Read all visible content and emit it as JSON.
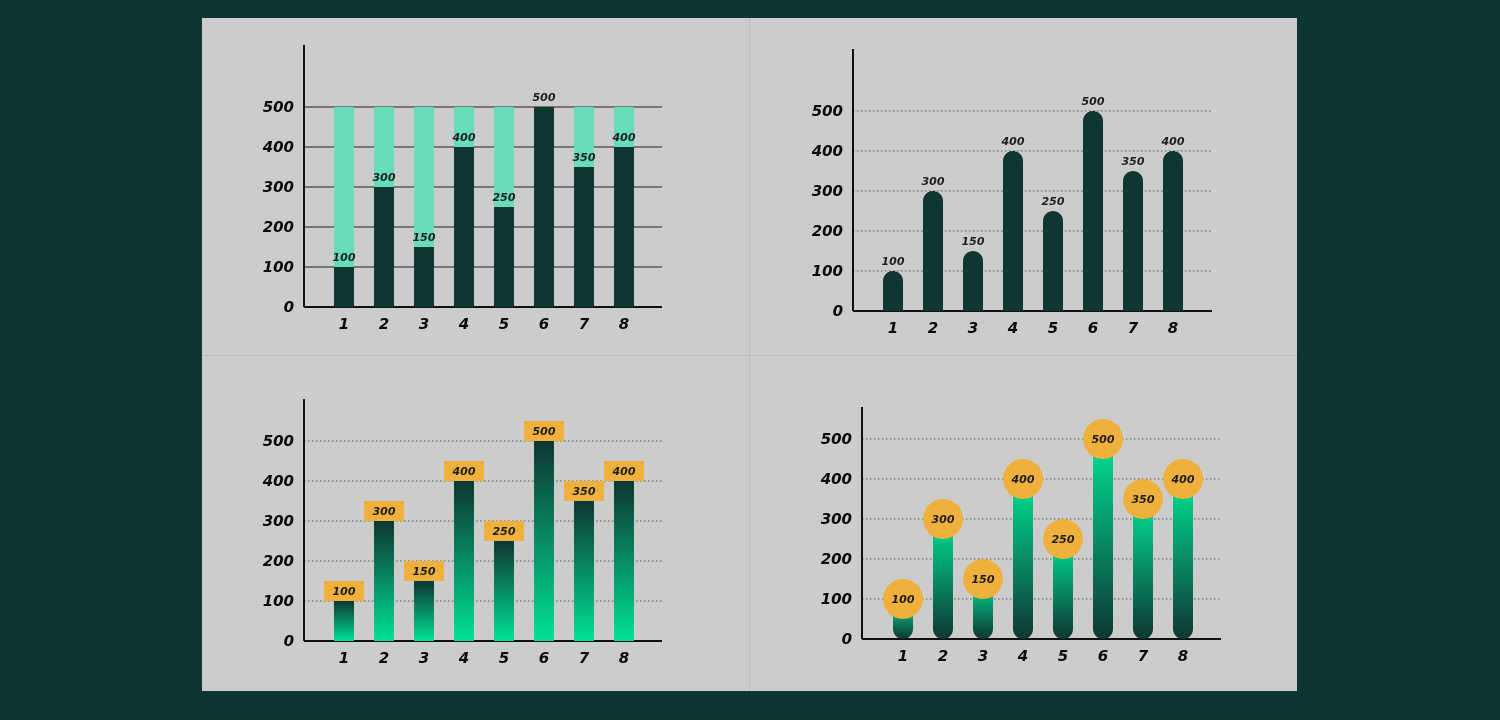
{
  "colors": {
    "page_bg": "#0d3533",
    "board_bg": "#cccccc",
    "dark_bar": "#0e3633",
    "light_bar": "#66dcba",
    "gradient_bright": "#00e194",
    "badge": "#f0b13c"
  },
  "chart_data": [
    {
      "type": "bar",
      "style": "stacked-progress",
      "categories": [
        "1",
        "2",
        "3",
        "4",
        "5",
        "6",
        "7",
        "8"
      ],
      "values": [
        100,
        300,
        150,
        400,
        250,
        500,
        350,
        400
      ],
      "max_value": 500,
      "ylim": [
        0,
        500
      ],
      "yticks": [
        "0",
        "100",
        "200",
        "300",
        "400",
        "500"
      ],
      "grid": "solid",
      "title": "",
      "xlabel": "",
      "ylabel": ""
    },
    {
      "type": "bar",
      "style": "rounded",
      "categories": [
        "1",
        "2",
        "3",
        "4",
        "5",
        "6",
        "7",
        "8"
      ],
      "values": [
        100,
        300,
        150,
        400,
        250,
        500,
        350,
        400
      ],
      "ylim": [
        0,
        500
      ],
      "yticks": [
        "0",
        "100",
        "200",
        "300",
        "400",
        "500"
      ],
      "grid": "dotted",
      "title": "",
      "xlabel": "",
      "ylabel": ""
    },
    {
      "type": "bar",
      "style": "gradient-with-tag-labels",
      "categories": [
        "1",
        "2",
        "3",
        "4",
        "5",
        "6",
        "7",
        "8"
      ],
      "values": [
        100,
        300,
        150,
        400,
        250,
        500,
        350,
        400
      ],
      "ylim": [
        0,
        500
      ],
      "yticks": [
        "0",
        "100",
        "200",
        "300",
        "400",
        "500"
      ],
      "grid": "dotted",
      "title": "",
      "xlabel": "",
      "ylabel": ""
    },
    {
      "type": "bar",
      "style": "rounded-gradient-with-circle-labels",
      "categories": [
        "1",
        "2",
        "3",
        "4",
        "5",
        "6",
        "7",
        "8"
      ],
      "values": [
        100,
        300,
        150,
        400,
        250,
        500,
        350,
        400
      ],
      "ylim": [
        0,
        500
      ],
      "yticks": [
        "0",
        "100",
        "200",
        "300",
        "400",
        "500"
      ],
      "grid": "dotted",
      "title": "",
      "xlabel": "",
      "ylabel": ""
    }
  ]
}
